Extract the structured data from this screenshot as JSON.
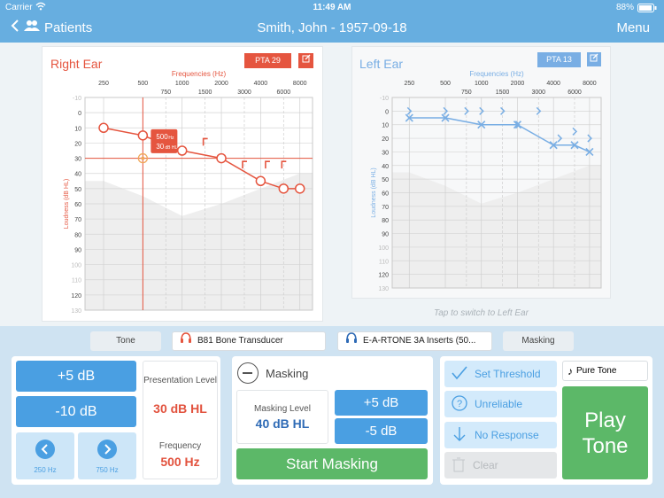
{
  "status_bar": {
    "carrier": "Carrier",
    "time": "11:49 AM",
    "battery": "88%"
  },
  "nav": {
    "back_label": "Patients",
    "title": "Smith, John - 1957-09-18",
    "menu_label": "Menu"
  },
  "right_ear": {
    "title": "Right Ear",
    "pta_label": "PTA 29",
    "freq_axis_title": "Frequencies (Hz)",
    "y_axis_title": "Loudness (dB HL)",
    "tooltip": {
      "line1_value": "500",
      "line1_unit": "Hz",
      "line2_value": "30",
      "line2_unit": "dB HL"
    },
    "accent_color": "#e5553f"
  },
  "left_ear": {
    "title": "Left Ear",
    "pta_label": "PTA 13",
    "freq_axis_title": "Frequencies (Hz)",
    "y_axis_title": "Loudness (dB HL)",
    "switch_hint": "Tap to switch to Left Ear",
    "accent_color": "#79aee4"
  },
  "chart_data": [
    {
      "type": "line",
      "title": "Right Ear",
      "xlabel": "Frequencies (Hz)",
      "ylabel": "Loudness (dB HL)",
      "x_ticks_major": [
        "250",
        "500",
        "1000",
        "2000",
        "4000",
        "8000"
      ],
      "x_ticks_minor": [
        "750",
        "1500",
        "3000",
        "6000"
      ],
      "y_ticks": [
        "-10",
        "0",
        "10",
        "20",
        "30",
        "40",
        "50",
        "60",
        "70",
        "80",
        "90",
        "100",
        "110",
        "120",
        "130"
      ],
      "ylim": [
        -10,
        130
      ],
      "y_inverted": true,
      "series": [
        {
          "symbol": "circle",
          "x": [
            250,
            500,
            1000,
            2000,
            4000,
            6000,
            8000
          ],
          "y": [
            10,
            15,
            25,
            30,
            45,
            50,
            50
          ]
        },
        {
          "symbol": "bracket",
          "x": [
            1500,
            3000,
            4500,
            6000
          ],
          "y": [
            20,
            35,
            35,
            35
          ]
        }
      ],
      "crosshair": {
        "x": 500,
        "y": 30
      }
    },
    {
      "type": "line",
      "title": "Left Ear",
      "xlabel": "Frequencies (Hz)",
      "ylabel": "Loudness (dB HL)",
      "x_ticks_major": [
        "250",
        "500",
        "1000",
        "2000",
        "4000",
        "8000"
      ],
      "x_ticks_minor": [
        "750",
        "1500",
        "3000",
        "6000"
      ],
      "y_ticks": [
        "-10",
        "0",
        "10",
        "20",
        "30",
        "40",
        "50",
        "60",
        "70",
        "80",
        "90",
        "100",
        "110",
        "120",
        "130"
      ],
      "ylim": [
        -10,
        130
      ],
      "y_inverted": true,
      "series": [
        {
          "symbol": "cross",
          "x": [
            250,
            500,
            1000,
            2000,
            4000,
            6000,
            8000
          ],
          "y": [
            5,
            5,
            10,
            10,
            25,
            25,
            30
          ]
        },
        {
          "symbol": "chevron",
          "x": [
            250,
            500,
            750,
            1000,
            1500,
            2000,
            3000,
            4500,
            6000,
            8000
          ],
          "y": [
            0,
            0,
            0,
            0,
            0,
            10,
            0,
            20,
            15,
            20
          ]
        }
      ]
    }
  ],
  "transducers": {
    "tone_label": "Tone",
    "right_transducer": "B81 Bone Transducer",
    "left_transducer": "E-A-RTONE 3A Inserts (50...",
    "masking_label": "Masking"
  },
  "level_panel": {
    "plus_label": "+5 dB",
    "minus_label": "-10 dB",
    "presentation_label": "Presentation Level",
    "presentation_value": "30 dB HL",
    "frequency_label": "Frequency",
    "frequency_value": "500 Hz",
    "prev_freq": "250 Hz",
    "next_freq": "750 Hz"
  },
  "masking_panel": {
    "title": "Masking",
    "level_label": "Masking Level",
    "level_value": "40 dB HL",
    "plus_label": "+5 dB",
    "minus_label": "-5 dB",
    "start_label": "Start Masking"
  },
  "actions_panel": {
    "set_threshold": "Set Threshold",
    "unreliable": "Unreliable",
    "no_response": "No Response",
    "clear": "Clear",
    "tone_type": "Pure Tone",
    "play_line1": "Play",
    "play_line2": "Tone"
  }
}
